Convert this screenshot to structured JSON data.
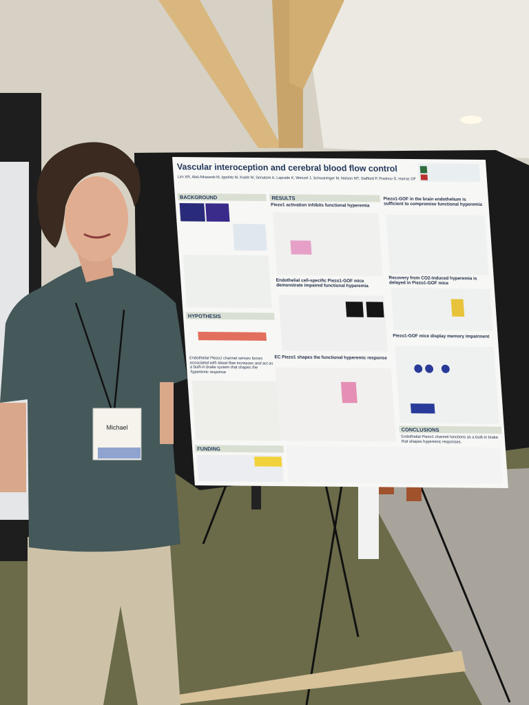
{
  "poster": {
    "title": "Vascular interoception and cerebral blood flow control",
    "authors": "Lim XR, Abd-Alhaseeb M, Ippolito M, Koide M, Senatore A, Laprade K, Wenzel J, Schwaninger M, Nelson MT, Stafford P, Postnov D, Harraz OF",
    "sections": {
      "background": "BACKGROUND",
      "results": "RESULTS",
      "hypothesis": "HYPOTHESIS",
      "funding": "FUNDING",
      "conclusions": "CONCLUSIONS"
    },
    "result_headings": [
      "Piezo1 activation inhibits functional hyperemia",
      "Endothelial cell-specific Piezo1-GOF mice demonstrate impaired functional hyperemia",
      "EC Piezo1 shapes the functional hyperemic response",
      "Piezo1-GOF in the brain endothelium is sufficient to compromise functional hyperemia",
      "Recovery from CO2-induced hyperemia is delayed in Piezo1-GOF mice",
      "Piezo1-GOF mice display memory impairment"
    ],
    "hypothesis_text": "Endothelial Piezo1 channel senses forces associated with blood flow increases and act as a built-in brake system that shapes the hyperemic response",
    "conclusion_text": "Endothelial Piezo1 channel functions as a built-in brake that shapes hyperemic responses."
  },
  "badge": {
    "name": "Michael"
  }
}
